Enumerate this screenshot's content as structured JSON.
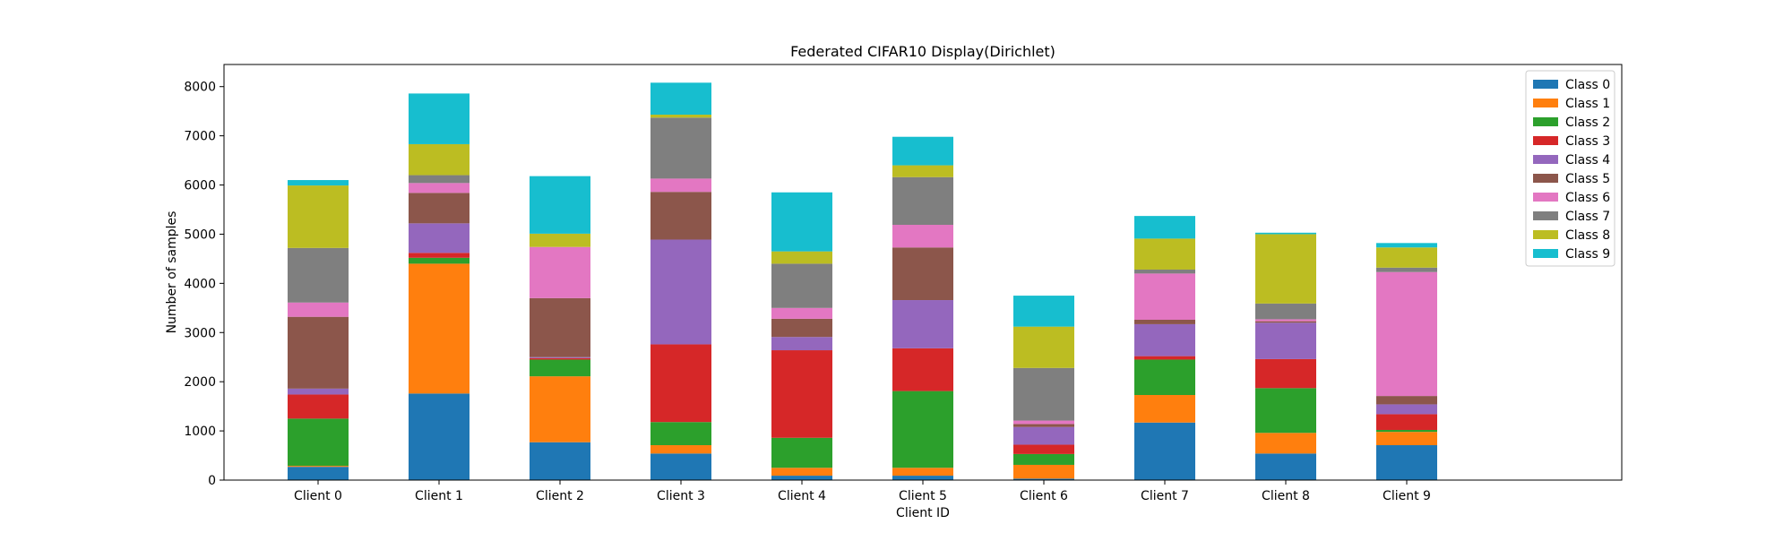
{
  "chart_data": {
    "type": "bar",
    "stacked": true,
    "title": "Federated CIFAR10 Display(Dirichlet)",
    "xlabel": "Client ID",
    "ylabel": "Number of samples",
    "categories": [
      "Client 0",
      "Client 1",
      "Client 2",
      "Client 3",
      "Client 4",
      "Client 5",
      "Client 6",
      "Client 7",
      "Client 8",
      "Client 9"
    ],
    "ylim": [
      0,
      8450
    ],
    "yticks": [
      0,
      1000,
      2000,
      3000,
      4000,
      5000,
      6000,
      7000,
      8000
    ],
    "legend_position": "top-right",
    "grid": false,
    "series": [
      {
        "name": "Class 0",
        "color": "#1f77b4",
        "values": [
          270,
          1760,
          770,
          540,
          90,
          90,
          30,
          1170,
          540,
          710
        ]
      },
      {
        "name": "Class 1",
        "color": "#ff7f0e",
        "values": [
          20,
          2640,
          1340,
          170,
          160,
          160,
          280,
          560,
          420,
          270
        ]
      },
      {
        "name": "Class 2",
        "color": "#2ca02c",
        "values": [
          960,
          120,
          340,
          470,
          610,
          1560,
          220,
          720,
          910,
          40
        ]
      },
      {
        "name": "Class 3",
        "color": "#d62728",
        "values": [
          490,
          100,
          30,
          1580,
          1780,
          870,
          190,
          70,
          590,
          320
        ]
      },
      {
        "name": "Class 4",
        "color": "#9467bd",
        "values": [
          120,
          600,
          20,
          2130,
          270,
          980,
          360,
          650,
          740,
          200
        ]
      },
      {
        "name": "Class 5",
        "color": "#8c564b",
        "values": [
          1460,
          620,
          1200,
          970,
          370,
          1070,
          60,
          90,
          30,
          170
        ]
      },
      {
        "name": "Class 6",
        "color": "#e377c2",
        "values": [
          290,
          200,
          1040,
          270,
          220,
          460,
          70,
          940,
          40,
          2520
        ]
      },
      {
        "name": "Class 7",
        "color": "#7f7f7f",
        "values": [
          1110,
          160,
          0,
          1240,
          900,
          970,
          1070,
          80,
          320,
          90
        ]
      },
      {
        "name": "Class 8",
        "color": "#bcbd22",
        "values": [
          1270,
          630,
          270,
          60,
          250,
          240,
          840,
          630,
          1410,
          410
        ]
      },
      {
        "name": "Class 9",
        "color": "#17becf",
        "values": [
          110,
          1030,
          1170,
          650,
          1200,
          580,
          630,
          460,
          30,
          90
        ]
      }
    ]
  }
}
